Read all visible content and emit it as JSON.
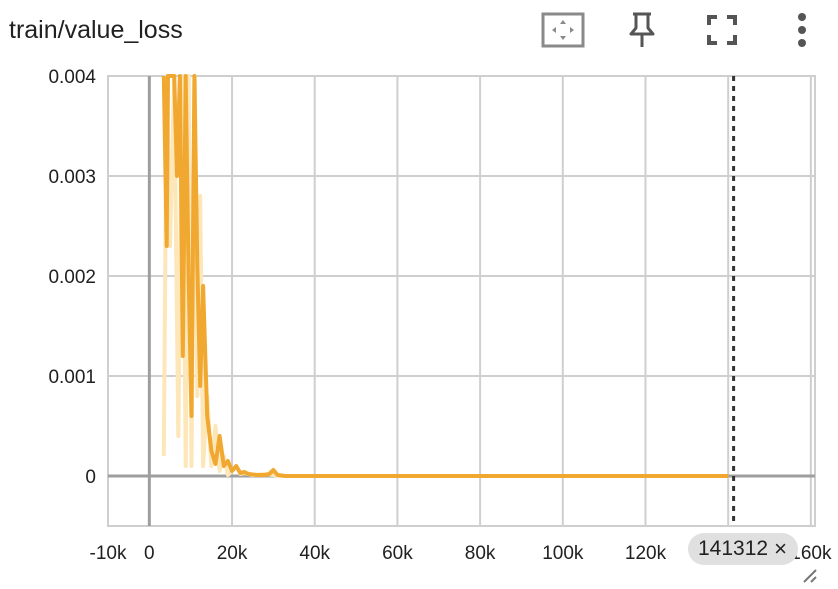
{
  "header": {
    "title": "train/value_loss",
    "icons": [
      "fit-domain-icon",
      "pin-icon",
      "fullscreen-icon",
      "more-vert-icon"
    ]
  },
  "colors": {
    "smoothed": "#f0a830",
    "raw": "#fde6b8",
    "grid": "#cfcfcf",
    "axis": "#9e9e9e",
    "text": "#212121"
  },
  "step_chip": {
    "value": "141312",
    "close": "×"
  },
  "chart_data": {
    "type": "line",
    "title": "train/value_loss",
    "xlabel": "",
    "ylabel": "",
    "xlim": [
      -10000,
      161000
    ],
    "ylim": [
      -0.0005,
      0.004
    ],
    "x_ticks": [
      -10000,
      0,
      20000,
      40000,
      60000,
      80000,
      100000,
      120000,
      140000,
      160000
    ],
    "x_tick_labels": [
      "-10k",
      "0",
      "20k",
      "40k",
      "60k",
      "80k",
      "100k",
      "120k",
      "140k",
      "160k"
    ],
    "y_ticks": [
      0,
      0.001,
      0.002,
      0.003,
      0.004
    ],
    "y_tick_labels": [
      "0",
      "0.001",
      "0.002",
      "0.003",
      "0.004"
    ],
    "grid": true,
    "cursor_step": 141312,
    "series": [
      {
        "x": [
          3500,
          4200,
          4500,
          6000,
          6700,
          7400,
          8100,
          8800,
          9500,
          10200,
          10900,
          11600,
          12300,
          13000,
          14000,
          15000,
          16000,
          17000,
          18000,
          19000,
          20000,
          21000,
          22000,
          23000,
          24000,
          26000,
          28000,
          29000,
          30000,
          31000,
          33000,
          36000,
          40000,
          50000,
          60000,
          80000,
          100000,
          120000,
          140000
        ],
        "values": [
          0.0045,
          0.0023,
          0.0045,
          0.0045,
          0.003,
          0.0045,
          0.0012,
          0.0045,
          0.002,
          0.0006,
          0.0045,
          0.0021,
          0.0009,
          0.0019,
          0.0006,
          0.00025,
          0.00012,
          0.0004,
          0.0001,
          0.00015,
          5e-05,
          0.0001,
          3e-05,
          4e-05,
          2e-05,
          1e-05,
          1e-05,
          2e-05,
          6e-05,
          1e-05,
          0.0,
          0.0,
          0.0,
          0.0,
          0.0,
          0.0,
          0.0,
          0.0,
          0.0
        ]
      },
      {
        "x": [
          3500,
          4200,
          5000,
          6000,
          7000,
          8000,
          8800,
          9500,
          10200,
          11000,
          11600,
          12300,
          13000,
          14000,
          15000,
          16000,
          17000,
          18000,
          19000,
          20000,
          21000,
          22000,
          23000,
          25000,
          28000,
          30000,
          32000,
          40000,
          60000,
          100000,
          140000
        ],
        "values": [
          0.0002,
          0.0045,
          0.0023,
          0.0045,
          0.0004,
          0.0045,
          0.0001,
          0.0045,
          0.0001,
          0.0045,
          0.0008,
          0.0028,
          0.0001,
          0.0008,
          0.0001,
          0.0005,
          5e-05,
          0.0002,
          1e-05,
          5e-05,
          0.0001,
          2e-05,
          3e-05,
          1e-05,
          2e-05,
          1e-05,
          0.0,
          0.0,
          0.0,
          0.0,
          0.0
        ]
      }
    ]
  }
}
